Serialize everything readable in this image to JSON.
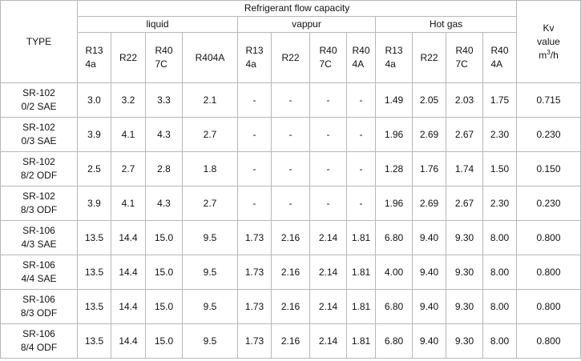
{
  "header": {
    "type_label": "TYPE",
    "flow_capacity_label": "Refrigerant flow capacity",
    "kv_label_line1": "Kv",
    "kv_label_line2": "value",
    "kv_unit_base": "m",
    "kv_unit_sup": "3",
    "kv_unit_rest": "/h",
    "groups": [
      {
        "label": "liquid",
        "refrigerants": [
          "R134a",
          "R22",
          "R407C",
          "R404A"
        ]
      },
      {
        "label": "vappur",
        "refrigerants": [
          "R134a",
          "R22",
          "R407C",
          "R404A"
        ]
      },
      {
        "label": "Hot gas",
        "refrigerants": [
          "R134a",
          "R22",
          "R407C",
          "R404A"
        ]
      }
    ]
  },
  "rows": [
    {
      "type": "SR-1020/2 SAE",
      "values": [
        "3.0",
        "3.2",
        "3.3",
        "2.1",
        "-",
        "-",
        "-",
        "-",
        "1.49",
        "2.05",
        "2.03",
        "1.75"
      ],
      "kv": "0.715"
    },
    {
      "type": "SR-1020/3 SAE",
      "values": [
        "3.9",
        "4.1",
        "4.3",
        "2.7",
        "-",
        "-",
        "-",
        "-",
        "1.96",
        "2.69",
        "2.67",
        "2.30"
      ],
      "kv": "0.230"
    },
    {
      "type": "SR-1028/2 ODF",
      "values": [
        "2.5",
        "2.7",
        "2.8",
        "1.8",
        "-",
        "-",
        "-",
        "-",
        "1.28",
        "1.76",
        "1.74",
        "1.50"
      ],
      "kv": "0.150"
    },
    {
      "type": "SR-1028/3 ODF",
      "values": [
        "3.9",
        "4.1",
        "4.3",
        "2.7",
        "-",
        "-",
        "-",
        "-",
        "1.96",
        "2.69",
        "2.67",
        "2.30"
      ],
      "kv": "0.230"
    },
    {
      "type": "SR-1064/3 SAE",
      "values": [
        "13.5",
        "14.4",
        "15.0",
        "9.5",
        "1.73",
        "2.16",
        "2.14",
        "1.81",
        "6.80",
        "9.40",
        "9.30",
        "8.00"
      ],
      "kv": "0.800"
    },
    {
      "type": "SR-1064/4 SAE",
      "values": [
        "13.5",
        "14.4",
        "15.0",
        "9.5",
        "1.73",
        "2.16",
        "2.14",
        "1.81",
        "4.00",
        "9.40",
        "9.30",
        "8.00"
      ],
      "kv": "0.800"
    },
    {
      "type": "SR-1068/3 ODF",
      "values": [
        "13.5",
        "14.4",
        "15.0",
        "9.5",
        "1.73",
        "2.16",
        "2.14",
        "1.81",
        "6.80",
        "9.40",
        "9.30",
        "8.00"
      ],
      "kv": "0.800"
    },
    {
      "type": "SR-1068/4 ODF",
      "values": [
        "13.5",
        "14.4",
        "15.0",
        "9.5",
        "1.73",
        "2.16",
        "2.14",
        "1.81",
        "6.80",
        "9.40",
        "9.30",
        "8.00"
      ],
      "kv": "0.800"
    }
  ]
}
